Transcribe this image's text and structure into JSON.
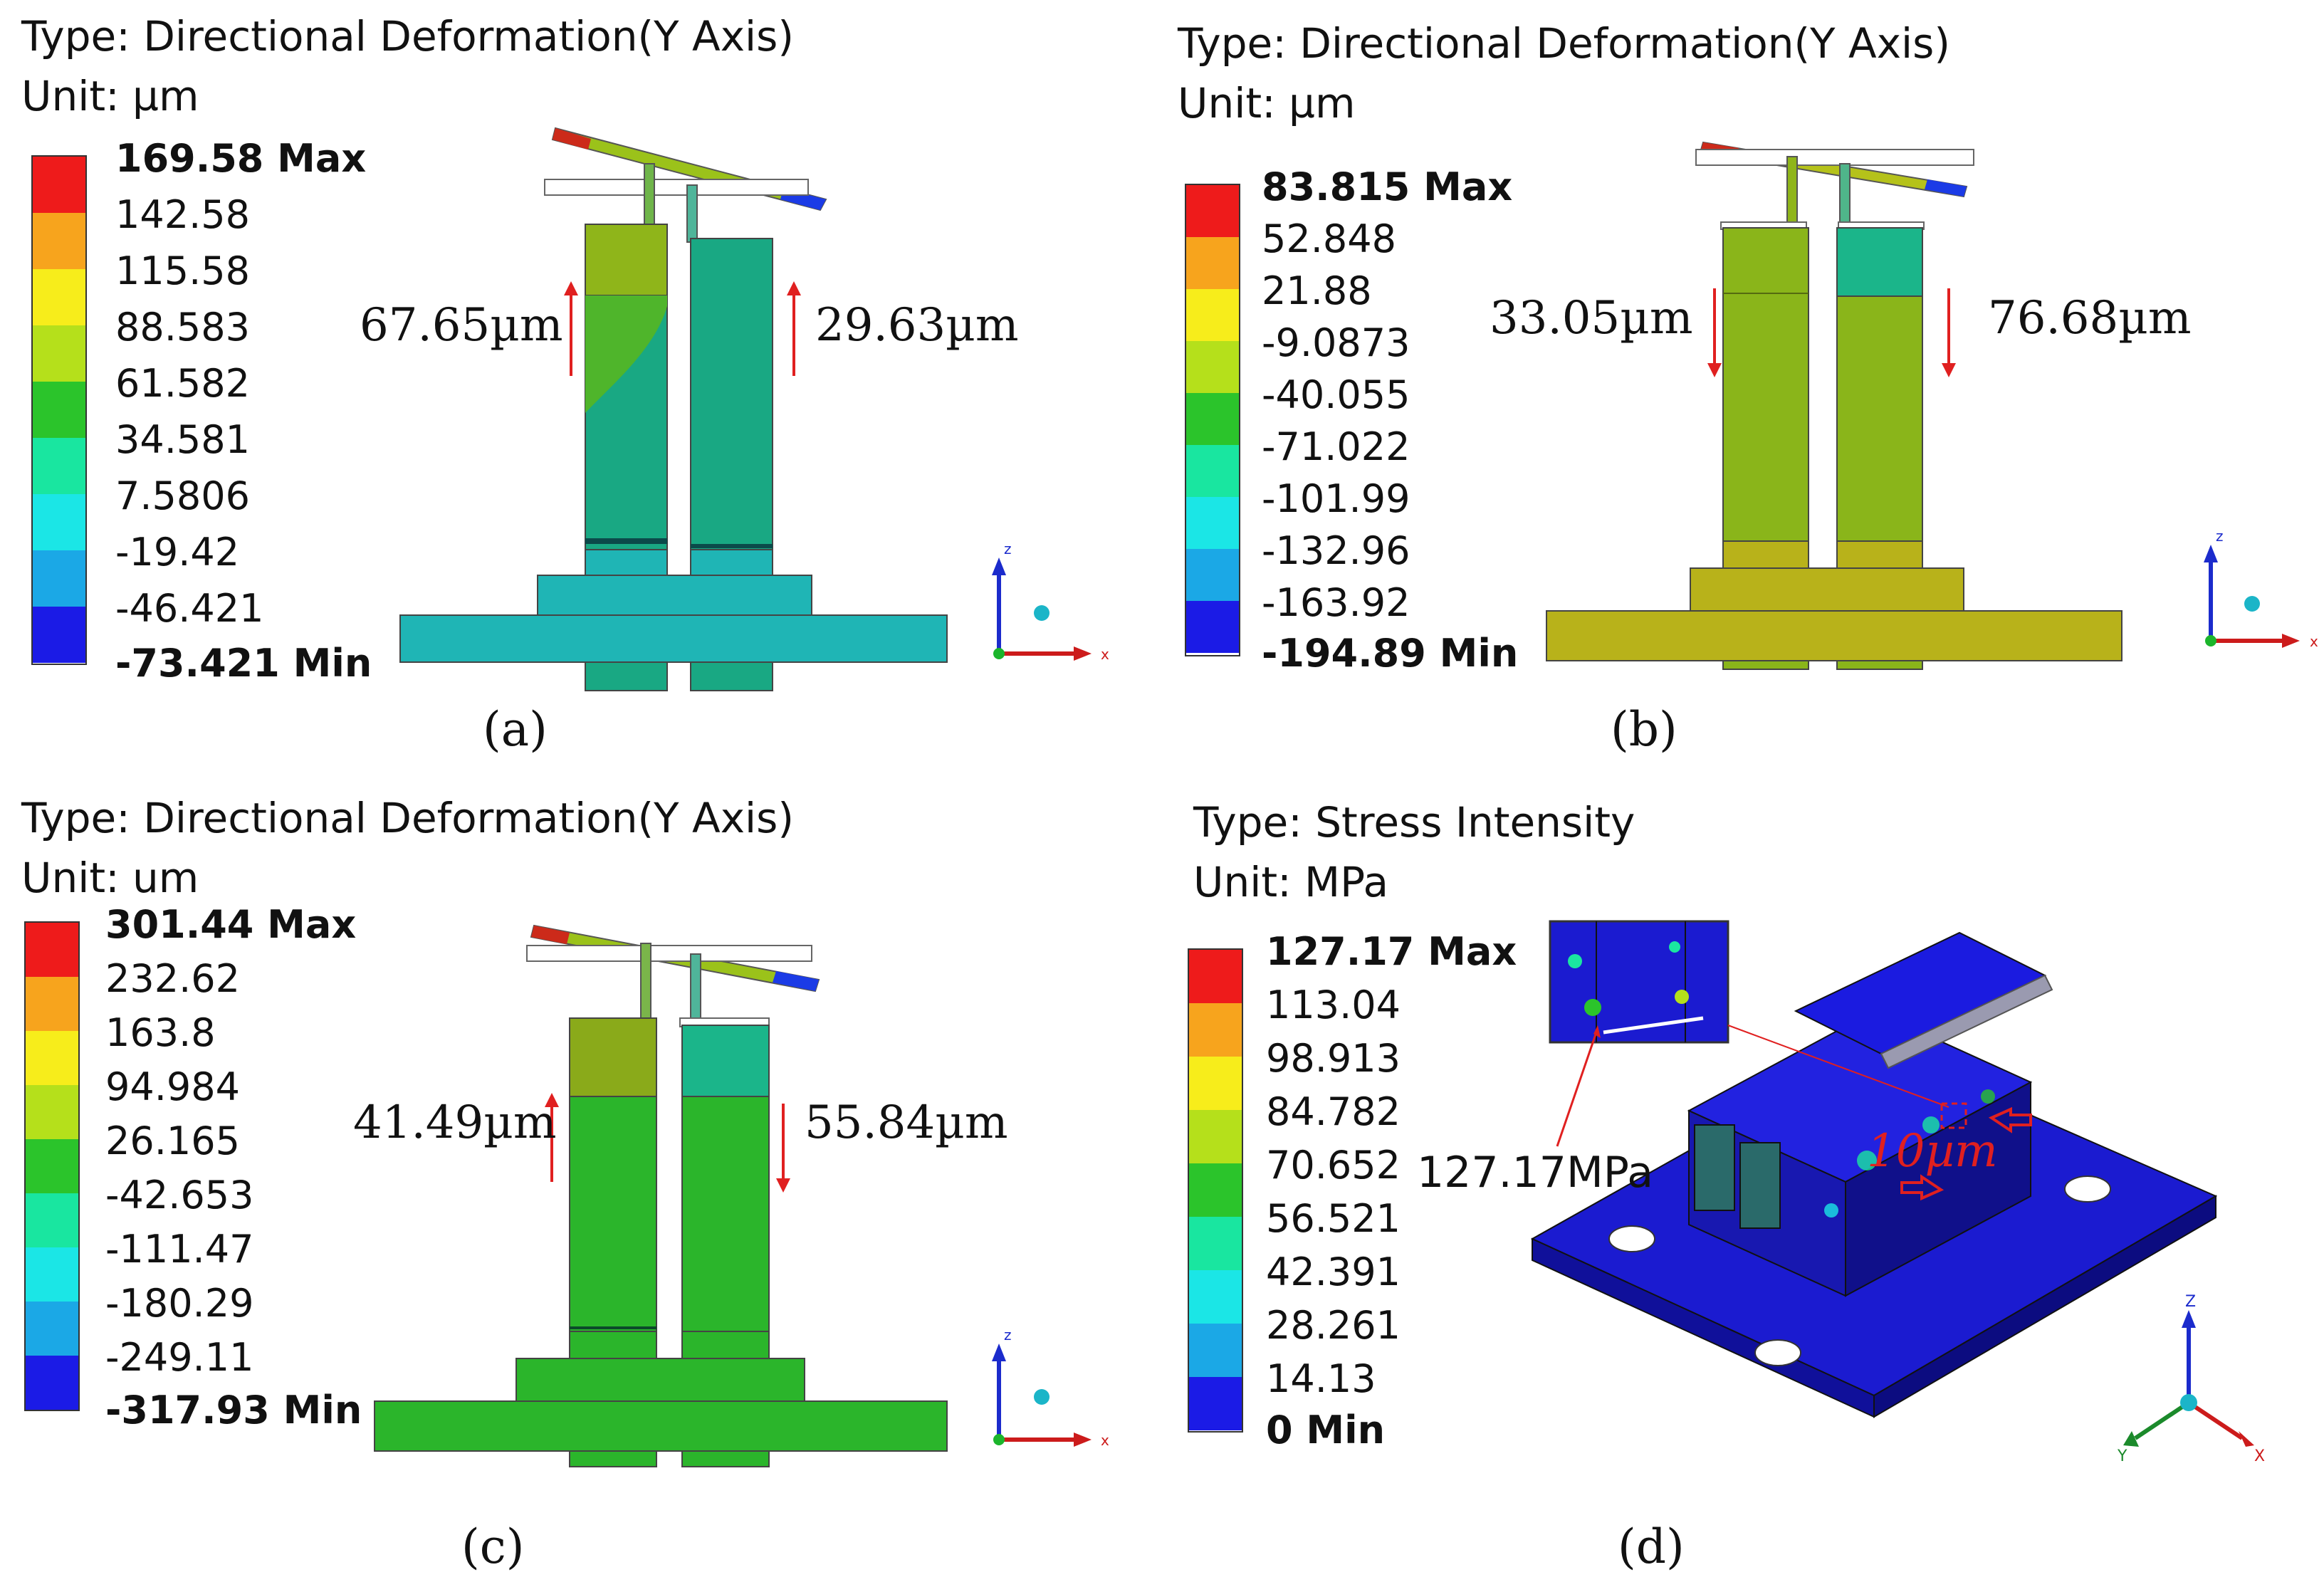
{
  "legend_colors": [
    "#ee1b1b",
    "#f7a41d",
    "#f7ed1b",
    "#b5e01b",
    "#2bc42b",
    "#19e6a0",
    "#1be6e6",
    "#1ba8e6",
    "#1b1be6"
  ],
  "panels": [
    {
      "type": "Type: Directional Deformation(Y Axis)",
      "unit": "Unit: µm",
      "levels": [
        "169.58 Max",
        "142.58",
        "115.58",
        "88.583",
        "61.582",
        "34.581",
        "7.5806",
        "-19.42",
        "-46.421",
        "-73.421 Min"
      ],
      "annot_left": "67.65µm",
      "annot_right": "29.63µm",
      "caption": "(a)",
      "base_color": "#1fb5b5",
      "left_col_color": "#19a883",
      "left_top_color": "#8fb51a",
      "right_col_color": "#19a883",
      "left_dir": "up",
      "right_dir": "up"
    },
    {
      "type": "Type: Directional Deformation(Y Axis)",
      "unit": "Unit: µm",
      "levels": [
        "83.815 Max",
        "52.848",
        "21.88",
        "-9.0873",
        "-40.055",
        "-71.022",
        "-101.99",
        "-132.96",
        "-163.92",
        "-194.89 Min"
      ],
      "annot_left": "33.05µm",
      "annot_right": "76.68µm",
      "caption": "(b)",
      "base_color": "#b8b21a",
      "left_col_color": "#8ab51a",
      "left_top_color": "#8ab51a",
      "right_col_color": "#8ab51a",
      "right_top_color": "#1bb58a",
      "left_dir": "down",
      "right_dir": "down"
    },
    {
      "type": "Type: Directional Deformation(Y Axis)",
      "unit": "Unit: um",
      "levels": [
        "301.44 Max",
        "232.62",
        "163.8",
        "94.984",
        "26.165",
        "-42.653",
        "-111.47",
        "-180.29",
        "-249.11",
        "-317.93 Min"
      ],
      "annot_left": "41.49µm",
      "annot_right": "55.84µm",
      "caption": "(c)",
      "base_color": "#2bb52b",
      "left_col_color": "#2bb52b",
      "left_top_color": "#8aaa1a",
      "right_col_color": "#2bb52b",
      "right_top_color": "#1bb58a",
      "left_dir": "up",
      "right_dir": "down"
    },
    {
      "type": "Type: Stress Intensity",
      "unit": "Unit: MPa",
      "levels": [
        "127.17 Max",
        "113.04",
        "98.913",
        "84.782",
        "70.652",
        "56.521",
        "42.391",
        "28.261",
        "14.13",
        "0 Min"
      ],
      "annot_stress": "127.17MPa",
      "annot_gap": "10µm",
      "caption": "(d)"
    }
  ],
  "axis_labels": {
    "z": "z",
    "x": "x",
    "y": "Y",
    "X": "X",
    "Z": "Z"
  }
}
